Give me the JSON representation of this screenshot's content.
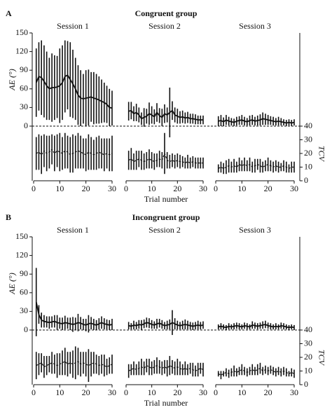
{
  "chart_data": [
    {
      "type": "errorbar-line",
      "panel": "A",
      "title": "Congruent group",
      "x_label": "Trial number",
      "y_label": "AE (°)",
      "y2_label": "TCV",
      "ylim": [
        0,
        150
      ],
      "yticks": [
        0,
        30,
        60,
        90,
        120,
        150
      ],
      "y2lim": [
        0,
        40
      ],
      "y2ticks": [
        0,
        10,
        20,
        30,
        40
      ],
      "xlim": [
        0,
        30
      ],
      "xticks": [
        0,
        10,
        20,
        30
      ],
      "color": "#111111",
      "x": [
        1,
        2,
        3,
        4,
        5,
        6,
        7,
        8,
        9,
        10,
        11,
        12,
        13,
        14,
        15,
        16,
        17,
        18,
        19,
        20,
        21,
        22,
        23,
        24,
        25,
        26,
        27,
        28,
        29,
        30
      ],
      "sessions": [
        {
          "name": "Session 1",
          "ae": [
            70,
            80,
            78,
            72,
            65,
            60,
            62,
            62,
            63,
            65,
            70,
            80,
            82,
            75,
            68,
            60,
            50,
            45,
            44,
            45,
            46,
            47,
            45,
            44,
            42,
            40,
            38,
            35,
            30,
            29
          ],
          "ae_err": [
            55,
            55,
            60,
            58,
            55,
            50,
            55,
            52,
            50,
            60,
            60,
            58,
            55,
            60,
            55,
            50,
            48,
            45,
            40,
            45,
            45,
            40,
            42,
            40,
            38,
            35,
            32,
            30,
            30,
            28
          ],
          "tcv": [
            20,
            21,
            19,
            22,
            20,
            21,
            23,
            20,
            22,
            21,
            20,
            22,
            21,
            19,
            20,
            21,
            22,
            21,
            20,
            19,
            21,
            20,
            19,
            20,
            21,
            20,
            19,
            20,
            19,
            20
          ],
          "tcv_err": [
            12,
            13,
            14,
            12,
            13,
            12,
            11,
            13,
            12,
            14,
            12,
            13,
            12,
            13,
            14,
            12,
            13,
            12,
            11,
            12,
            13,
            12,
            11,
            12,
            12,
            11,
            12,
            11,
            12,
            13
          ]
        },
        {
          "name": "Session 2",
          "ae": [
            24,
            25,
            20,
            22,
            18,
            12,
            14,
            16,
            20,
            18,
            15,
            22,
            17,
            14,
            20,
            18,
            22,
            25,
            18,
            16,
            14,
            15,
            13,
            14,
            12,
            12,
            11,
            10,
            10,
            10
          ],
          "ae_err": [
            15,
            14,
            12,
            14,
            12,
            10,
            15,
            12,
            18,
            14,
            12,
            15,
            12,
            14,
            15,
            12,
            40,
            15,
            12,
            12,
            10,
            10,
            9,
            9,
            8,
            8,
            8,
            7,
            7,
            7
          ],
          "tcv": [
            15,
            16,
            14,
            15,
            16,
            15,
            14,
            15,
            16,
            15,
            14,
            15,
            16,
            15,
            20,
            15,
            14,
            15,
            14,
            15,
            14,
            14,
            13,
            14,
            13,
            14,
            13,
            13,
            13,
            13
          ],
          "tcv_err": [
            7,
            8,
            6,
            7,
            6,
            7,
            6,
            6,
            7,
            6,
            6,
            5,
            6,
            6,
            15,
            6,
            5,
            5,
            5,
            5,
            5,
            4,
            4,
            5,
            4,
            4,
            4,
            4,
            4,
            4
          ]
        },
        {
          "name": "Session 3",
          "ae": [
            8,
            9,
            7,
            10,
            8,
            7,
            6,
            8,
            9,
            10,
            8,
            7,
            9,
            10,
            8,
            9,
            10,
            12,
            11,
            10,
            9,
            8,
            7,
            8,
            7,
            6,
            5,
            6,
            5,
            6
          ],
          "ae_err": [
            8,
            9,
            7,
            8,
            7,
            6,
            6,
            7,
            7,
            8,
            7,
            6,
            8,
            8,
            7,
            8,
            9,
            10,
            9,
            8,
            7,
            7,
            6,
            7,
            6,
            5,
            5,
            5,
            5,
            5
          ],
          "tcv": [
            9,
            10,
            9,
            10,
            11,
            10,
            11,
            10,
            12,
            11,
            12,
            11,
            12,
            10,
            11,
            12,
            11,
            10,
            11,
            12,
            11,
            10,
            11,
            10,
            10,
            11,
            10,
            9,
            10,
            10
          ],
          "tcv_err": [
            3,
            4,
            4,
            5,
            5,
            4,
            5,
            4,
            5,
            4,
            5,
            4,
            5,
            4,
            5,
            4,
            5,
            4,
            4,
            5,
            4,
            4,
            4,
            4,
            3,
            4,
            4,
            3,
            4,
            4
          ]
        }
      ]
    },
    {
      "type": "errorbar-line",
      "panel": "B",
      "title": "Incongruent group",
      "x_label": "Trial number",
      "y_label": "AE (°)",
      "y2_label": "TCV",
      "ylim": [
        0,
        150
      ],
      "yticks": [
        0,
        30,
        60,
        90,
        120,
        150
      ],
      "y2lim": [
        0,
        40
      ],
      "y2ticks": [
        0,
        10,
        20,
        30,
        40
      ],
      "xlim": [
        0,
        30
      ],
      "xticks": [
        0,
        10,
        20,
        30
      ],
      "color": "#111111",
      "x": [
        1,
        2,
        3,
        4,
        5,
        6,
        7,
        8,
        9,
        10,
        11,
        12,
        13,
        14,
        15,
        16,
        17,
        18,
        19,
        20,
        21,
        22,
        23,
        24,
        25,
        26,
        27,
        28,
        29,
        30
      ],
      "sessions": [
        {
          "name": "Session 1",
          "ae": [
            45,
            25,
            16,
            14,
            13,
            12,
            13,
            14,
            12,
            11,
            10,
            12,
            11,
            10,
            9,
            10,
            12,
            11,
            9,
            8,
            10,
            11,
            9,
            8,
            10,
            12,
            10,
            9,
            8,
            9
          ],
          "ae_err": [
            55,
            15,
            12,
            10,
            9,
            10,
            9,
            10,
            12,
            9,
            10,
            11,
            9,
            10,
            12,
            10,
            14,
            10,
            9,
            10,
            14,
            10,
            9,
            8,
            9,
            10,
            9,
            8,
            8,
            9
          ],
          "tcv": [
            14,
            15,
            16,
            13,
            14,
            15,
            16,
            15,
            14,
            15,
            16,
            17,
            15,
            16,
            15,
            16,
            17,
            15,
            16,
            15,
            14,
            15,
            16,
            15,
            14,
            15,
            14,
            13,
            14,
            15
          ],
          "tcv_err": [
            10,
            8,
            7,
            8,
            7,
            6,
            8,
            7,
            9,
            8,
            9,
            10,
            9,
            8,
            10,
            12,
            10,
            9,
            8,
            9,
            12,
            9,
            8,
            7,
            7,
            7,
            8,
            6,
            6,
            7
          ]
        },
        {
          "name": "Session 2",
          "ae": [
            7,
            6,
            8,
            7,
            9,
            8,
            10,
            12,
            11,
            9,
            8,
            10,
            11,
            9,
            7,
            8,
            9,
            12,
            10,
            8,
            7,
            8,
            9,
            8,
            7,
            6,
            7,
            8,
            7,
            8
          ],
          "ae_err": [
            6,
            5,
            7,
            6,
            7,
            8,
            7,
            8,
            8,
            7,
            6,
            8,
            7,
            7,
            6,
            7,
            8,
            20,
            9,
            7,
            6,
            7,
            8,
            7,
            6,
            6,
            6,
            7,
            6,
            6
          ],
          "tcv": [
            10,
            11,
            12,
            11,
            12,
            13,
            12,
            14,
            13,
            12,
            13,
            14,
            13,
            12,
            13,
            12,
            14,
            13,
            12,
            13,
            12,
            11,
            12,
            11,
            12,
            11,
            10,
            11,
            12,
            11
          ],
          "tcv_err": [
            5,
            4,
            5,
            4,
            5,
            6,
            5,
            5,
            6,
            5,
            5,
            6,
            5,
            5,
            5,
            6,
            7,
            5,
            5,
            6,
            5,
            4,
            5,
            4,
            4,
            5,
            4,
            5,
            4,
            5
          ]
        },
        {
          "name": "Session 3",
          "ae": [
            5,
            6,
            5,
            4,
            6,
            5,
            6,
            7,
            6,
            5,
            7,
            6,
            5,
            8,
            7,
            6,
            7,
            8,
            9,
            7,
            6,
            5,
            6,
            5,
            7,
            6,
            5,
            4,
            5,
            4
          ],
          "ae_err": [
            4,
            5,
            4,
            4,
            5,
            4,
            5,
            5,
            5,
            4,
            5,
            5,
            4,
            6,
            5,
            5,
            5,
            6,
            6,
            5,
            5,
            4,
            5,
            4,
            5,
            5,
            4,
            4,
            4,
            4
          ],
          "tcv": [
            8,
            7,
            8,
            9,
            8,
            9,
            10,
            9,
            10,
            11,
            10,
            9,
            10,
            11,
            10,
            11,
            12,
            10,
            11,
            10,
            11,
            10,
            9,
            10,
            9,
            10,
            9,
            8,
            9,
            8
          ],
          "tcv_err": [
            2,
            3,
            2,
            3,
            3,
            3,
            4,
            3,
            3,
            4,
            3,
            3,
            3,
            4,
            3,
            4,
            4,
            3,
            3,
            3,
            3,
            3,
            3,
            3,
            3,
            3,
            3,
            2,
            3,
            3
          ]
        }
      ]
    }
  ]
}
